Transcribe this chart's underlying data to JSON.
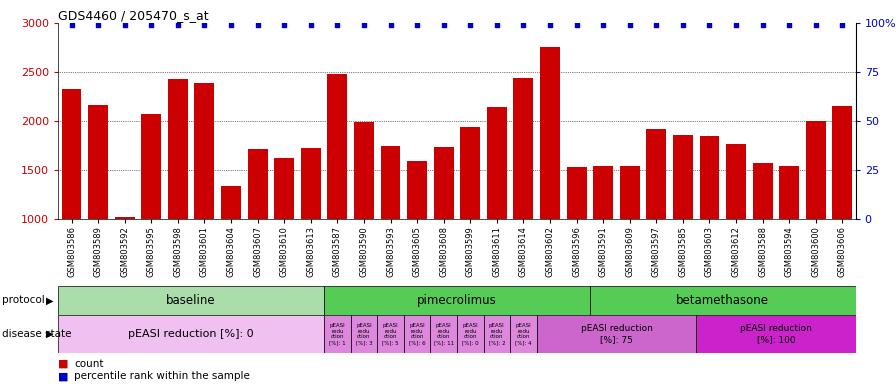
{
  "title": "GDS4460 / 205470_s_at",
  "samples": [
    "GSM803586",
    "GSM803589",
    "GSM803592",
    "GSM803595",
    "GSM803598",
    "GSM803601",
    "GSM803604",
    "GSM803607",
    "GSM803610",
    "GSM803613",
    "GSM803587",
    "GSM803590",
    "GSM803593",
    "GSM803605",
    "GSM803608",
    "GSM803599",
    "GSM803611",
    "GSM803614",
    "GSM803602",
    "GSM803596",
    "GSM803591",
    "GSM803609",
    "GSM803597",
    "GSM803585",
    "GSM803603",
    "GSM803612",
    "GSM803588",
    "GSM803594",
    "GSM803600",
    "GSM803606"
  ],
  "bar_values": [
    2330,
    2160,
    1020,
    2070,
    2430,
    2390,
    1340,
    1710,
    1620,
    1720,
    2480,
    1990,
    1740,
    1590,
    1730,
    1940,
    2140,
    2440,
    2760,
    1530,
    1540,
    1540,
    1920,
    1860,
    1850,
    1760,
    1570,
    1540,
    2000,
    2150
  ],
  "percentile_values": [
    99,
    99,
    99,
    99,
    99,
    99,
    99,
    99,
    99,
    99,
    99,
    99,
    99,
    99,
    99,
    99,
    99,
    99,
    99,
    99,
    99,
    99,
    99,
    99,
    99,
    99,
    99,
    99,
    99,
    99
  ],
  "bar_color": "#cc0000",
  "percentile_color": "#0000cc",
  "ylim_left": [
    1000,
    3000
  ],
  "ylim_right": [
    0,
    100
  ],
  "yticks_left": [
    1000,
    1500,
    2000,
    2500,
    3000
  ],
  "yticks_right": [
    0,
    25,
    50,
    75,
    100
  ],
  "ytick_labels_right": [
    "0",
    "25",
    "50",
    "75",
    "100%"
  ],
  "grid_lines": [
    1500,
    2000,
    2500
  ],
  "protocol_groups": [
    {
      "label": "baseline",
      "start": 0,
      "end": 10,
      "color": "#aaddaa"
    },
    {
      "label": "pimecrolimus",
      "start": 10,
      "end": 20,
      "color": "#55cc55"
    },
    {
      "label": "betamethasone",
      "start": 20,
      "end": 30,
      "color": "#55cc55"
    }
  ],
  "disease_state_groups": [
    {
      "label": "pEASI reduction [%]: 0",
      "start": 0,
      "end": 10,
      "color": "#f0c0f0"
    },
    {
      "label": "pEASI\nredu\nction\n[%]: 1",
      "start": 10,
      "end": 11,
      "color": "#dd88dd"
    },
    {
      "label": "pEASI\nredu\nction\n[%]: 3",
      "start": 11,
      "end": 12,
      "color": "#dd88dd"
    },
    {
      "label": "pEASI\nredu\nction\n[%]: 5",
      "start": 12,
      "end": 13,
      "color": "#dd88dd"
    },
    {
      "label": "pEASI\nredu\nction\n[%]: 6",
      "start": 13,
      "end": 14,
      "color": "#dd88dd"
    },
    {
      "label": "pEASI\nredu\nction\n[%]: 11",
      "start": 14,
      "end": 15,
      "color": "#dd88dd"
    },
    {
      "label": "pEASI\nredu\nction\n[%]: 0",
      "start": 15,
      "end": 16,
      "color": "#dd88dd"
    },
    {
      "label": "pEASI\nredu\nction\n[%]: 2",
      "start": 16,
      "end": 17,
      "color": "#dd88dd"
    },
    {
      "label": "pEASI\nredu\nction\n[%]: 4",
      "start": 17,
      "end": 18,
      "color": "#dd88dd"
    },
    {
      "label": "pEASI reduction\n[%]: 75",
      "start": 18,
      "end": 24,
      "color": "#cc66cc"
    },
    {
      "label": "pEASI reduction\n[%]: 100",
      "start": 24,
      "end": 30,
      "color": "#cc22cc"
    }
  ]
}
